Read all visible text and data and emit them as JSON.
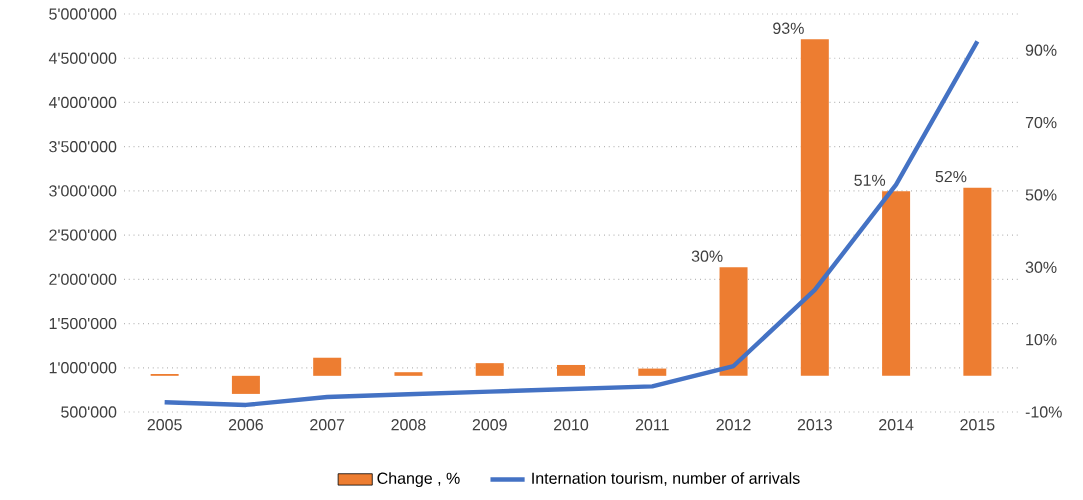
{
  "chart_data": {
    "type": "bar",
    "categories": [
      "2005",
      "2006",
      "2007",
      "2008",
      "2009",
      "2010",
      "2011",
      "2012",
      "2013",
      "2014",
      "2015"
    ],
    "series": [
      {
        "name": "Change , %",
        "axis": "y2",
        "color": "#ed7d31",
        "values": [
          0.5,
          -5,
          5,
          1,
          3.5,
          3,
          2,
          30,
          93,
          51,
          52
        ],
        "value_labels": [
          null,
          null,
          null,
          null,
          null,
          null,
          null,
          "30%",
          "93%",
          "51%",
          "52%"
        ]
      },
      {
        "name": "Internation tourism, number of arrivals",
        "type": "line",
        "axis": "y",
        "color": "#4472c4",
        "values": [
          610000,
          580000,
          670000,
          700000,
          730000,
          760000,
          790000,
          1020000,
          1880000,
          3070000,
          4690000
        ]
      }
    ],
    "ylim": [
      500000,
      5000000
    ],
    "yticks": [
      {
        "value": 500000,
        "label": "500'000"
      },
      {
        "value": 1000000,
        "label": "1'000'000"
      },
      {
        "value": 1500000,
        "label": "1'500'000"
      },
      {
        "value": 2000000,
        "label": "2'000'000"
      },
      {
        "value": 2500000,
        "label": "2'500'000"
      },
      {
        "value": 3000000,
        "label": "3'000'000"
      },
      {
        "value": 3500000,
        "label": "3'500'000"
      },
      {
        "value": 4000000,
        "label": "4'000'000"
      },
      {
        "value": 4500000,
        "label": "4'500'000"
      },
      {
        "value": 5000000,
        "label": "5'000'000"
      }
    ],
    "y2lim": [
      -10,
      100
    ],
    "y2ticks": [
      {
        "value": -10,
        "label": "-10%"
      },
      {
        "value": 10,
        "label": "10%"
      },
      {
        "value": 30,
        "label": "30%"
      },
      {
        "value": 50,
        "label": "50%"
      },
      {
        "value": 70,
        "label": "70%"
      },
      {
        "value": 90,
        "label": "90%"
      }
    ],
    "grid": "y",
    "legend": "bottom"
  }
}
